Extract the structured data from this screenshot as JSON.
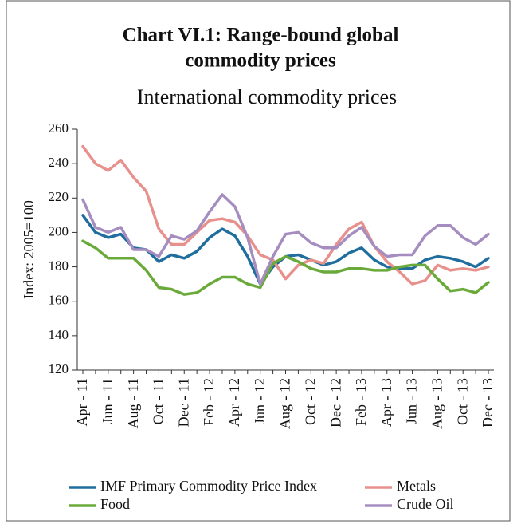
{
  "chart_data": {
    "type": "line",
    "title": [
      "Chart VI.1: Range-bound global",
      "commodity prices"
    ],
    "subtitle": "International commodity prices",
    "ylabel": "Index: 2005=100",
    "categories": [
      "Apr - 11",
      null,
      "Jun - 11",
      null,
      "Aug - 11",
      null,
      "Oct - 11",
      null,
      "Dec - 11",
      null,
      "Feb - 12",
      null,
      "Apr - 12",
      null,
      "Jun - 12",
      null,
      "Aug - 12",
      null,
      "Oct - 12",
      null,
      "Dec - 12",
      null,
      "Feb - 13",
      null,
      "Apr - 13",
      null,
      "Jun - 13",
      null,
      "Aug - 13",
      null,
      "Oct - 13",
      null,
      "Dec - 13"
    ],
    "series": [
      {
        "name": "IMF Primary Commodity Price Index",
        "color": "#1f6e9e",
        "values": [
          210,
          200,
          197,
          199,
          191,
          190,
          183,
          187,
          185,
          189,
          197,
          202,
          198,
          186,
          170,
          180,
          186,
          187,
          184,
          181,
          183,
          188,
          191,
          184,
          180,
          179,
          179,
          184,
          186,
          185,
          183,
          180,
          185
        ]
      },
      {
        "name": "Metals",
        "color": "#e8908c",
        "values": [
          250,
          240,
          236,
          242,
          232,
          224,
          202,
          193,
          193,
          200,
          207,
          208,
          206,
          198,
          187,
          184,
          173,
          181,
          184,
          182,
          193,
          202,
          206,
          192,
          183,
          177,
          170,
          172,
          181,
          178,
          179,
          178,
          180
        ]
      },
      {
        "name": "Food",
        "color": "#6aaa3a",
        "values": [
          195,
          191,
          185,
          185,
          185,
          178,
          168,
          167,
          164,
          165,
          170,
          174,
          174,
          170,
          168,
          182,
          186,
          183,
          179,
          177,
          177,
          179,
          179,
          178,
          178,
          180,
          181,
          181,
          173,
          166,
          167,
          165,
          171
        ]
      },
      {
        "name": "Crude Oil",
        "color": "#a58dc0",
        "values": [
          219,
          203,
          200,
          203,
          190,
          190,
          186,
          198,
          196,
          201,
          212,
          222,
          215,
          197,
          170,
          186,
          199,
          200,
          194,
          191,
          191,
          198,
          203,
          192,
          186,
          187,
          187,
          198,
          204,
          204,
          197,
          193,
          199
        ]
      }
    ],
    "ylim": [
      120,
      260
    ],
    "yticks": [
      120,
      140,
      160,
      180,
      200,
      220,
      240,
      260
    ]
  }
}
